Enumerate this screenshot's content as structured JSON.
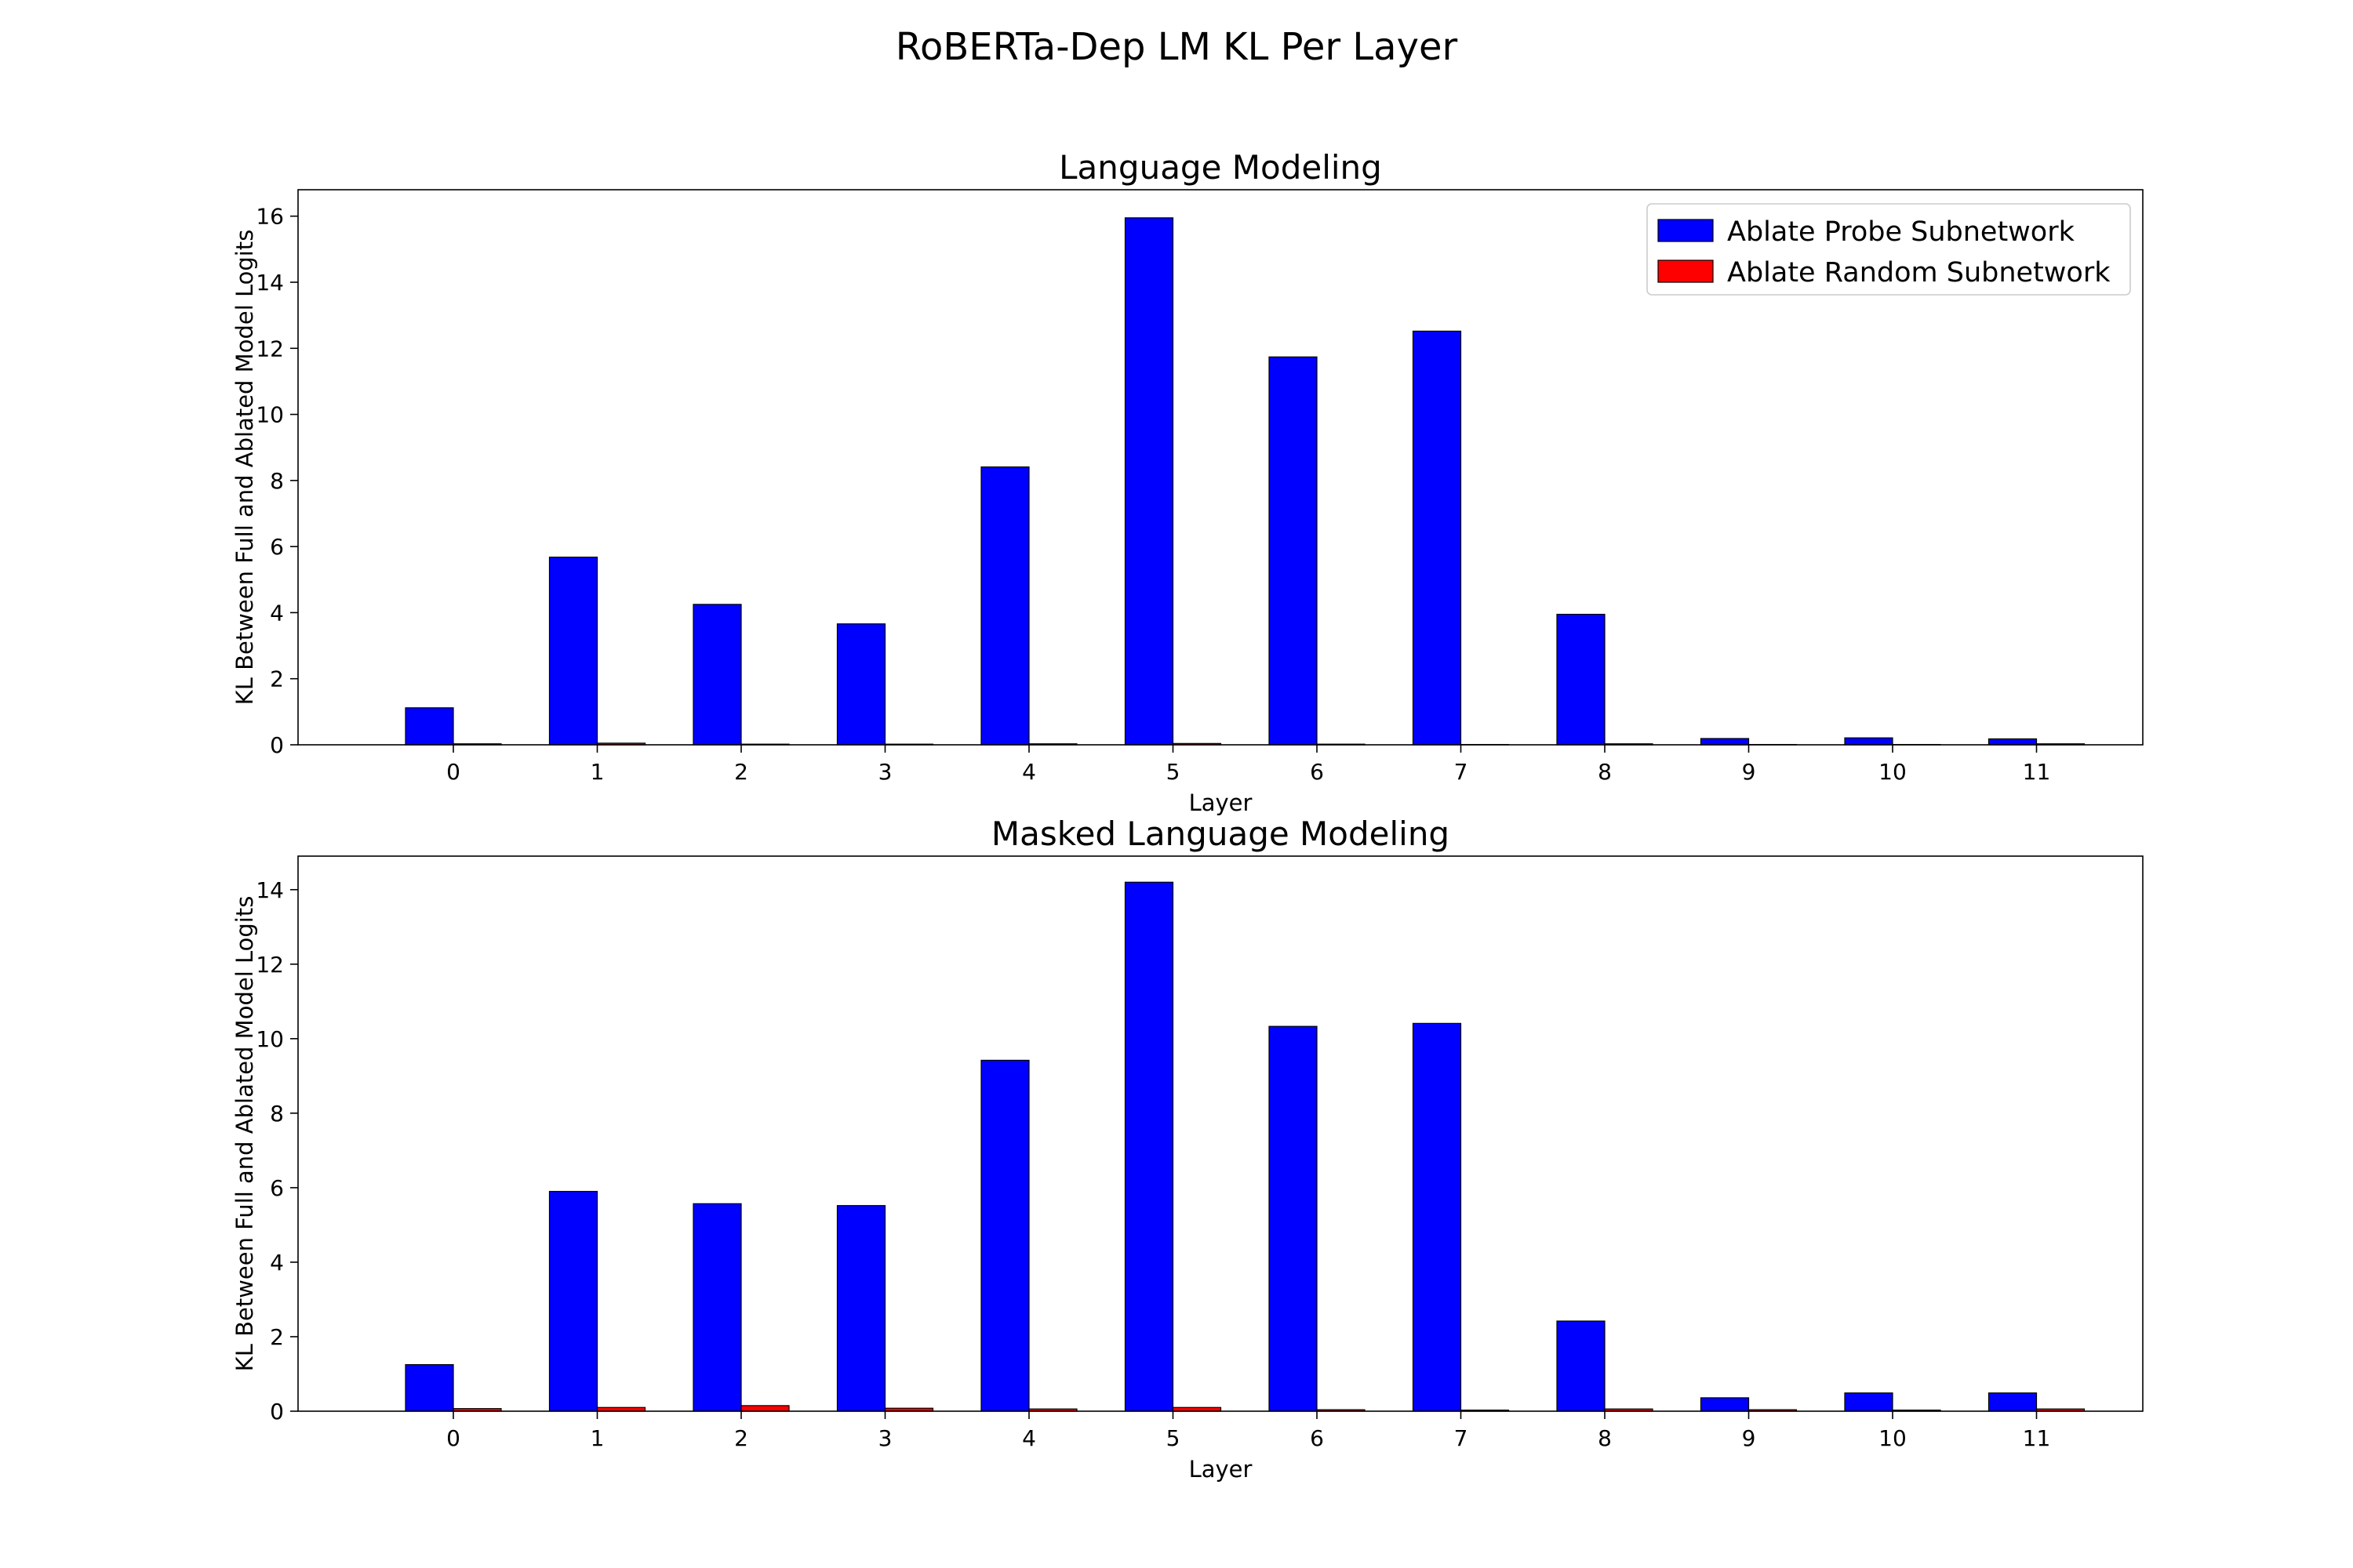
{
  "figure": {
    "title": "RoBERTa-Dep LM KL Per Layer"
  },
  "chart_data": [
    {
      "type": "bar",
      "title": "Language Modeling",
      "xlabel": "Layer",
      "ylabel": "KL Between Full and Ablated Model Logits",
      "categories": [
        "0",
        "1",
        "2",
        "3",
        "4",
        "5",
        "6",
        "7",
        "8",
        "9",
        "10",
        "11"
      ],
      "ylim": [
        0,
        16.8
      ],
      "yticks": [
        0,
        2,
        4,
        6,
        8,
        10,
        12,
        14,
        16
      ],
      "grid": false,
      "legend_position": "top-right",
      "series": [
        {
          "name": "Ablate Probe Subnetwork",
          "color": "#0000ff",
          "values": [
            1.12,
            5.68,
            4.25,
            3.66,
            8.41,
            15.95,
            11.74,
            12.52,
            3.95,
            0.19,
            0.21,
            0.18
          ]
        },
        {
          "name": "Ablate Random Subnetwork",
          "color": "#ff0000",
          "values": [
            0.03,
            0.05,
            0.02,
            0.02,
            0.03,
            0.04,
            0.02,
            0.01,
            0.03,
            0.01,
            0.01,
            0.03
          ]
        }
      ]
    },
    {
      "type": "bar",
      "title": "Masked Language Modeling",
      "xlabel": "Layer",
      "ylabel": "KL Between Full and Ablated Model Logits",
      "categories": [
        "0",
        "1",
        "2",
        "3",
        "4",
        "5",
        "6",
        "7",
        "8",
        "9",
        "10",
        "11"
      ],
      "ylim": [
        0,
        14.9
      ],
      "yticks": [
        0,
        2,
        4,
        6,
        8,
        10,
        12,
        14
      ],
      "grid": false,
      "legend_position": "none",
      "series": [
        {
          "name": "Ablate Probe Subnetwork",
          "color": "#0000ff",
          "values": [
            1.25,
            5.9,
            5.57,
            5.52,
            9.42,
            14.2,
            10.33,
            10.41,
            2.42,
            0.36,
            0.49,
            0.49
          ]
        },
        {
          "name": "Ablate Random Subnetwork",
          "color": "#ff0000",
          "values": [
            0.07,
            0.1,
            0.15,
            0.08,
            0.06,
            0.1,
            0.04,
            0.03,
            0.06,
            0.04,
            0.03,
            0.06
          ]
        }
      ]
    }
  ]
}
